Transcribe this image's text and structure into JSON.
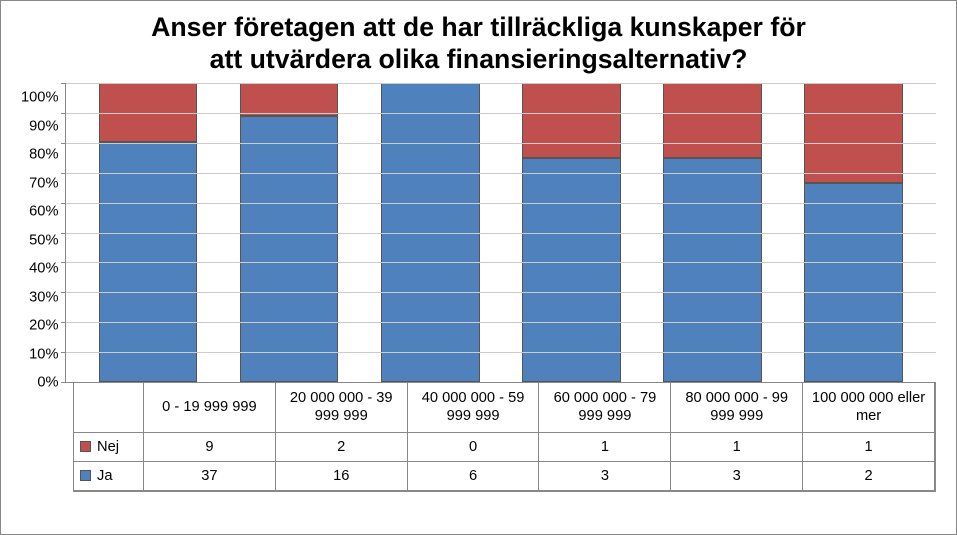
{
  "chart": {
    "type": "stacked-bar-100pct",
    "title_line1": "Anser företagen att de har tillräckliga kunskaper för",
    "title_line2": "att utvärdera olika finansieringsalternativ?",
    "title_fontsize_pt": 20,
    "title_fontweight": "bold",
    "background_color": "#ffffff",
    "border_color": "#888888",
    "grid_color": "#cccccc",
    "axis_color": "#888888",
    "text_color": "#000000",
    "label_fontsize_pt": 11,
    "categories": [
      "0 - 19 999 999",
      "20 000 000 - 39 999 999",
      "40 000 000 - 59 999 999",
      "60 000 000 - 79 999 999",
      "80 000 000 - 99 999 999",
      "100 000 000 eller mer"
    ],
    "series": [
      {
        "name": "Nej",
        "label": "Nej",
        "color": "#c0504d",
        "values": [
          9,
          2,
          0,
          1,
          1,
          1
        ]
      },
      {
        "name": "Ja",
        "label": "Ja",
        "color": "#4f81bd",
        "values": [
          37,
          16,
          6,
          3,
          3,
          2
        ]
      }
    ],
    "bar_width_pct": 70,
    "y": {
      "min": 0,
      "max": 100,
      "step": 10,
      "format": "percent",
      "ticks": [
        "100%",
        "90%",
        "80%",
        "70%",
        "60%",
        "50%",
        "40%",
        "30%",
        "20%",
        "10%",
        "0%"
      ]
    }
  }
}
